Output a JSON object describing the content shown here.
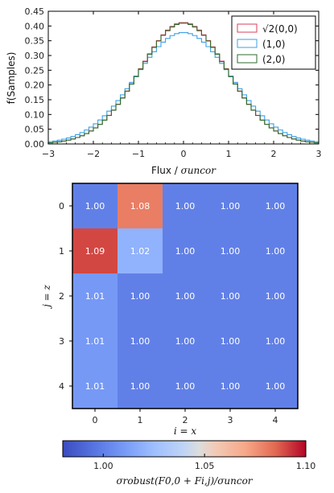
{
  "chart_data": [
    {
      "type": "line",
      "style": "step",
      "xlabel_text": "Flux / ",
      "xlabel_math": "σuncor",
      "ylabel": "f(Samples)",
      "xlim": [
        -3,
        3
      ],
      "ylim": [
        0,
        0.45
      ],
      "xticks": [
        "−3",
        "−2",
        "−1",
        "0",
        "1",
        "2",
        "3"
      ],
      "yticks": [
        "0.00",
        "0.05",
        "0.10",
        "0.15",
        "0.20",
        "0.25",
        "0.30",
        "0.35",
        "0.40",
        "0.45"
      ],
      "legend_position": "top-right",
      "series": [
        {
          "name": "√2(0,0)",
          "color": "#dc3c5a",
          "sigma": 0.97,
          "peak": 0.412
        },
        {
          "name": "(1,0)",
          "color": "#39a0e6",
          "sigma": 1.055,
          "peak": 0.378
        },
        {
          "name": "(2,0)",
          "color": "#2e6b2e",
          "sigma": 0.97,
          "peak": 0.41
        }
      ],
      "bin_width": 0.1,
      "grid": false
    },
    {
      "type": "heatmap",
      "xlabel": "i = x",
      "ylabel": "j = z",
      "x_ticks": [
        "0",
        "1",
        "2",
        "3",
        "4"
      ],
      "y_ticks": [
        "0",
        "1",
        "2",
        "3",
        "4"
      ],
      "values": [
        [
          1.0,
          1.08,
          1.0,
          1.0,
          1.0
        ],
        [
          1.09,
          1.02,
          1.0,
          1.0,
          1.0
        ],
        [
          1.01,
          1.0,
          1.0,
          1.0,
          1.0
        ],
        [
          1.01,
          1.0,
          1.0,
          1.0,
          1.0
        ],
        [
          1.01,
          1.0,
          1.0,
          1.0,
          1.0
        ]
      ],
      "labels": [
        [
          "1.00",
          "1.08",
          "1.00",
          "1.00",
          "1.00"
        ],
        [
          "1.09",
          "1.02",
          "1.00",
          "1.00",
          "1.00"
        ],
        [
          "1.01",
          "1.00",
          "1.00",
          "1.00",
          "1.00"
        ],
        [
          "1.01",
          "1.00",
          "1.00",
          "1.00",
          "1.00"
        ],
        [
          "1.01",
          "1.00",
          "1.00",
          "1.00",
          "1.00"
        ]
      ],
      "colormap": "coolwarm",
      "vmin": 0.98,
      "vmax": 1.1,
      "colorbar": {
        "ticks": [
          1.0,
          1.05,
          1.1
        ],
        "tick_labels": [
          "1.00",
          "1.05",
          "1.10"
        ],
        "label": "σrobust(F0,0 + Fi,j)/σuncor"
      }
    }
  ]
}
